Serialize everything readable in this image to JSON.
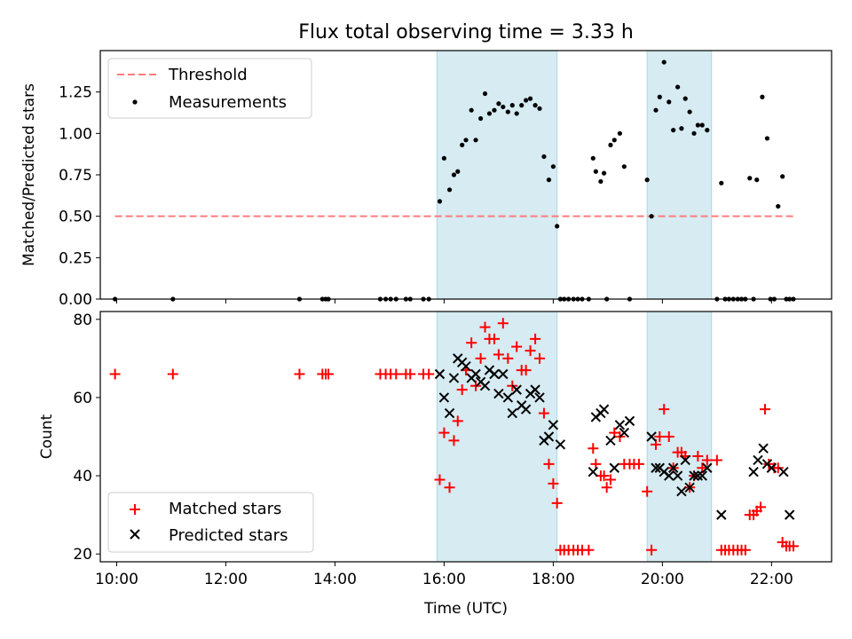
{
  "chart_data": [
    {
      "type": "scatter",
      "title": "Flux total observing time = 3.33 h",
      "xlabel": "",
      "ylabel": "Matched/Predicted stars",
      "xlim": [
        9.7,
        23.1
      ],
      "ylim": [
        0,
        1.5
      ],
      "yticks": [
        0.0,
        0.25,
        0.5,
        0.75,
        1.0,
        1.25
      ],
      "ytick_labels": [
        "0.00",
        "0.25",
        "0.50",
        "0.75",
        "1.00",
        "1.25"
      ],
      "xticks": [
        10,
        12,
        14,
        16,
        18,
        20,
        22
      ],
      "shaded_spans": [
        [
          15.87,
          18.07
        ],
        [
          19.72,
          20.9
        ]
      ],
      "legend": {
        "position": "upper left",
        "entries": [
          "Threshold",
          "Measurements"
        ]
      },
      "threshold": {
        "name": "Threshold",
        "y": 0.5,
        "x": [
          9.97,
          22.43
        ],
        "color": "#ff7b7b",
        "style": "dashed"
      },
      "measurements": {
        "name": "Measurements",
        "color": "#000000",
        "x": [
          9.97,
          11.03,
          13.35,
          13.77,
          13.83,
          13.88,
          14.83,
          14.93,
          15.02,
          15.12,
          15.3,
          15.38,
          15.62,
          15.72,
          15.92,
          16.0,
          16.1,
          16.18,
          16.25,
          16.33,
          16.4,
          16.5,
          16.58,
          16.67,
          16.75,
          16.83,
          16.92,
          17.0,
          17.08,
          17.17,
          17.25,
          17.33,
          17.42,
          17.5,
          17.58,
          17.67,
          17.75,
          17.83,
          17.92,
          18.0,
          18.07,
          18.13,
          18.2,
          18.28,
          18.37,
          18.45,
          18.53,
          18.65,
          18.73,
          18.78,
          18.87,
          18.93,
          18.98,
          19.05,
          19.12,
          19.22,
          19.3,
          19.4,
          19.72,
          19.8,
          19.88,
          19.95,
          20.03,
          20.12,
          20.2,
          20.28,
          20.35,
          20.42,
          20.5,
          20.58,
          20.65,
          20.73,
          20.82,
          21.0,
          21.08,
          21.15,
          21.22,
          21.3,
          21.38,
          21.45,
          21.52,
          21.6,
          21.67,
          21.73,
          21.83,
          21.92,
          21.98,
          22.05,
          22.12,
          22.2,
          22.27,
          22.33,
          22.4
        ],
        "y": [
          0,
          0,
          0,
          0,
          0,
          0,
          0,
          0,
          0,
          0,
          0,
          0,
          0,
          0,
          0.59,
          0.85,
          0.66,
          0.75,
          0.77,
          0.93,
          0.96,
          1.14,
          0.96,
          1.09,
          1.24,
          1.12,
          1.14,
          1.18,
          1.16,
          1.13,
          1.17,
          1.12,
          1.17,
          1.2,
          1.21,
          1.17,
          1.15,
          0.86,
          0.72,
          0.8,
          0.44,
          0,
          0,
          0,
          0,
          0,
          0,
          0,
          0.85,
          0.77,
          0.71,
          0.76,
          0.0,
          0.93,
          0.96,
          1.0,
          0.8,
          0.0,
          0.72,
          0.5,
          1.14,
          1.22,
          1.43,
          1.19,
          1.02,
          1.28,
          1.03,
          1.21,
          1.13,
          1.0,
          1.05,
          1.05,
          1.02,
          0.0,
          0.7,
          0,
          0,
          0,
          0,
          0,
          0,
          0.73,
          0.0,
          0.72,
          1.22,
          0.97,
          0.0,
          0.0,
          0.56,
          0.74,
          0.0,
          0,
          0
        ]
      }
    },
    {
      "type": "scatter",
      "title": "",
      "xlabel": "Time (UTC)",
      "ylabel": "Count",
      "xlim": [
        9.7,
        23.1
      ],
      "ylim": [
        18,
        82
      ],
      "yticks": [
        20,
        40,
        60,
        80
      ],
      "xticks": [
        10,
        12,
        14,
        16,
        18,
        20,
        22
      ],
      "xtick_labels": [
        "10:00",
        "12:00",
        "14:00",
        "16:00",
        "18:00",
        "20:00",
        "22:00"
      ],
      "shaded_spans": [
        [
          15.87,
          18.07
        ],
        [
          19.72,
          20.9
        ]
      ],
      "legend": {
        "position": "lower left",
        "entries": [
          "Matched stars",
          "Predicted stars"
        ]
      },
      "series": [
        {
          "name": "Matched stars",
          "marker": "+",
          "color": "#ff0000",
          "x": [
            9.97,
            11.03,
            13.35,
            13.77,
            13.83,
            13.88,
            14.83,
            14.93,
            15.02,
            15.12,
            15.3,
            15.38,
            15.62,
            15.72,
            15.92,
            16.0,
            16.1,
            16.18,
            16.25,
            16.33,
            16.4,
            16.5,
            16.58,
            16.67,
            16.75,
            16.83,
            16.92,
            17.0,
            17.08,
            17.17,
            17.25,
            17.33,
            17.42,
            17.5,
            17.58,
            17.67,
            17.75,
            17.83,
            17.92,
            18.0,
            18.07,
            18.13,
            18.2,
            18.28,
            18.37,
            18.45,
            18.53,
            18.65,
            18.73,
            18.78,
            18.87,
            18.93,
            18.98,
            19.05,
            19.12,
            19.22,
            19.3,
            19.4,
            19.48,
            19.57,
            19.72,
            19.8,
            19.88,
            19.95,
            20.03,
            20.12,
            20.2,
            20.28,
            20.35,
            20.42,
            20.5,
            20.58,
            20.65,
            20.73,
            20.82,
            21.0,
            21.08,
            21.15,
            21.22,
            21.3,
            21.38,
            21.45,
            21.52,
            21.6,
            21.67,
            21.73,
            21.8,
            21.88,
            21.95,
            22.05,
            22.12,
            22.2,
            22.27,
            22.33,
            22.4
          ],
          "y": [
            66,
            66,
            66,
            66,
            66,
            66,
            66,
            66,
            66,
            66,
            66,
            66,
            66,
            66,
            39,
            51,
            37,
            49,
            54,
            62,
            67,
            74,
            63,
            70,
            78,
            75,
            75,
            71,
            79,
            70,
            63,
            73,
            67,
            67,
            72,
            75,
            70,
            56,
            43,
            38,
            33,
            21,
            21,
            21,
            21,
            21,
            21,
            21,
            47,
            43,
            40,
            40,
            37,
            39,
            51,
            50,
            43,
            43,
            43,
            43,
            36,
            21,
            48,
            50,
            57,
            50,
            42,
            46,
            46,
            45,
            37,
            40,
            45,
            42,
            44,
            44,
            21,
            21,
            21,
            21,
            21,
            21,
            21,
            30,
            30,
            31,
            32,
            57,
            43,
            42,
            42,
            23,
            22,
            22,
            22
          ]
        },
        {
          "name": "Predicted stars",
          "marker": "x",
          "color": "#000000",
          "x": [
            15.92,
            16.0,
            16.1,
            16.18,
            16.25,
            16.33,
            16.4,
            16.5,
            16.58,
            16.67,
            16.75,
            16.83,
            16.92,
            17.0,
            17.08,
            17.17,
            17.25,
            17.33,
            17.42,
            17.5,
            17.58,
            17.67,
            17.75,
            17.83,
            17.92,
            18.0,
            18.13,
            18.73,
            18.78,
            18.87,
            18.93,
            19.05,
            19.12,
            19.22,
            19.3,
            19.4,
            19.8,
            19.88,
            19.95,
            20.03,
            20.12,
            20.2,
            20.28,
            20.35,
            20.42,
            20.5,
            20.58,
            20.65,
            20.73,
            20.82,
            21.08,
            21.67,
            21.75,
            21.85,
            21.92,
            22.0,
            22.22,
            22.33
          ],
          "y": [
            66,
            60,
            56,
            65,
            70,
            69,
            68,
            65,
            66,
            64,
            63,
            67,
            66,
            61,
            66,
            60,
            56,
            62,
            58,
            57,
            61,
            62,
            60,
            49,
            50,
            53,
            48,
            41,
            55,
            56,
            57,
            49,
            42,
            53,
            51,
            54,
            50,
            42,
            42,
            41,
            40,
            42,
            40,
            36,
            44,
            37,
            40,
            40,
            40,
            42,
            30,
            41,
            44,
            47,
            43,
            42,
            41,
            30
          ]
        }
      ]
    }
  ]
}
